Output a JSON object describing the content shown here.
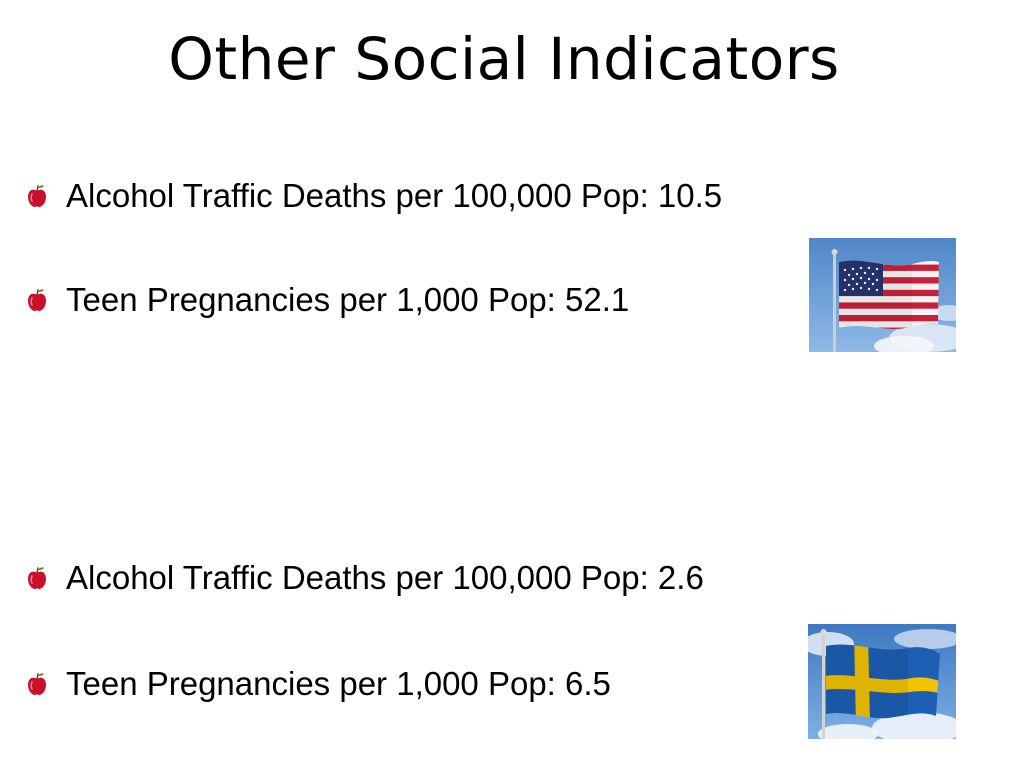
{
  "slide": {
    "title": "Other Social Indicators",
    "bullet_icon": "apple-bullet-icon",
    "groups": [
      {
        "country_flag": "usa-flag",
        "items": [
          "Alcohol Traffic Deaths per 100,000 Pop: 10.5",
          "Teen Pregnancies per 1,000 Pop: 52.1"
        ]
      },
      {
        "country_flag": "sweden-flag",
        "items": [
          "Alcohol Traffic Deaths per 100,000 Pop: 2.6",
          "Teen Pregnancies per 1,000 Pop: 6.5"
        ]
      }
    ]
  },
  "colors": {
    "background": "#ffffff",
    "text": "#000000",
    "bullet_apple": "#c8102e",
    "usa_red": "#c8203a",
    "usa_blue": "#2a3570",
    "sweden_blue": "#1d5fb4",
    "sweden_yellow": "#f2c400",
    "sky": "#6fa3dc"
  }
}
